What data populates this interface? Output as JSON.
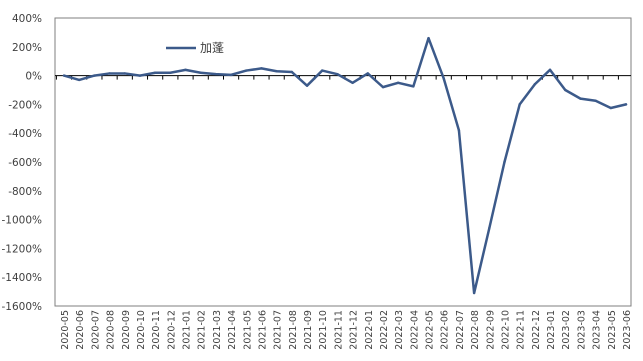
{
  "chart_data": {
    "type": "line",
    "title": "",
    "xlabel": "",
    "ylabel": "",
    "ylim": [
      -1600,
      400
    ],
    "yticks": [
      400,
      200,
      0,
      -200,
      -400,
      -600,
      -800,
      -1000,
      -1200,
      -1400,
      -1600
    ],
    "ytick_labels": [
      "400%",
      "200%",
      "0%",
      "-200%",
      "-400%",
      "-600%",
      "-800%",
      "-1000%",
      "-1200%",
      "-1400%",
      "-1600%"
    ],
    "y_unit": "%",
    "grid": false,
    "legend": "top-left",
    "x": [
      "2020-05",
      "2020-06",
      "2020-07",
      "2020-08",
      "2020-09",
      "2020-10",
      "2020-11",
      "2020-12",
      "2021-01",
      "2021-02",
      "2021-03",
      "2021-04",
      "2021-05",
      "2021-06",
      "2021-07",
      "2021-08",
      "2021-09",
      "2021-10",
      "2021-11",
      "2021-12",
      "2022-01",
      "2022-02",
      "2022-03",
      "2022-04",
      "2022-05",
      "2022-06",
      "2022-07",
      "2022-08",
      "2022-09",
      "2022-10",
      "2022-11",
      "2022-12",
      "2023-01",
      "2023-02",
      "2023-03",
      "2023-04",
      "2023-05",
      "2023-06"
    ],
    "series": [
      {
        "name": "加蓬",
        "color": "#3c5a8a",
        "values": [
          0,
          -30,
          0,
          15,
          15,
          0,
          20,
          20,
          40,
          20,
          10,
          5,
          35,
          50,
          30,
          25,
          -70,
          35,
          10,
          -50,
          15,
          -80,
          -50,
          -75,
          260,
          -20,
          -380,
          -1510,
          -1060,
          -600,
          -200,
          -60,
          40,
          -100,
          -160,
          -175,
          -225,
          -200
        ]
      }
    ]
  }
}
